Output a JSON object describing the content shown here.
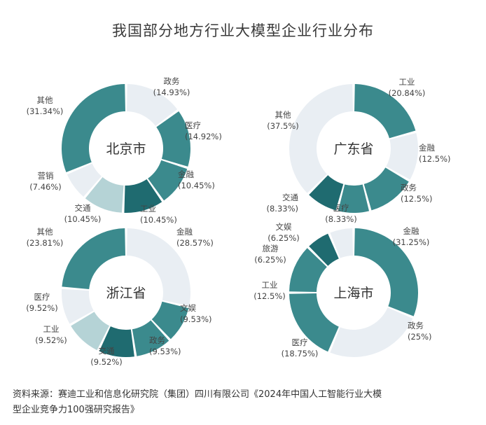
{
  "title": "我国部分地方行业大模型企业行业分布",
  "colors": {
    "dark": "#1f6b70",
    "medium": "#3b8a8d",
    "light": "#b5d3d6",
    "pale": "#e9eef3"
  },
  "chart_data": [
    {
      "type": "pie",
      "center_label": "北京市",
      "slices": [
        {
          "name": "政务",
          "value": 14.93,
          "label": "(14.93%)",
          "color": "pale"
        },
        {
          "name": "医疗",
          "value": 14.92,
          "label": "(14.92%)",
          "color": "medium"
        },
        {
          "name": "金融",
          "value": 10.45,
          "label": "(10.45%)",
          "color": "medium"
        },
        {
          "name": "工业",
          "value": 10.45,
          "label": "(10.45%)",
          "color": "dark"
        },
        {
          "name": "交通",
          "value": 10.45,
          "label": "(10.45%)",
          "color": "light"
        },
        {
          "name": "营销",
          "value": 7.46,
          "label": "(7.46%)",
          "color": "pale"
        },
        {
          "name": "其他",
          "value": 31.34,
          "label": "(31.34%)",
          "color": "medium"
        }
      ]
    },
    {
      "type": "pie",
      "center_label": "广东省",
      "slices": [
        {
          "name": "工业",
          "value": 20.84,
          "label": "(20.84%)",
          "color": "medium"
        },
        {
          "name": "金融",
          "value": 12.5,
          "label": "(12.5%)",
          "color": "pale"
        },
        {
          "name": "政务",
          "value": 12.5,
          "label": "(12.5%)",
          "color": "medium"
        },
        {
          "name": "医疗",
          "value": 8.33,
          "label": "(8.33%)",
          "color": "medium"
        },
        {
          "name": "交通",
          "value": 8.33,
          "label": "(8.33%)",
          "color": "dark"
        },
        {
          "name": "其他",
          "value": 37.5,
          "label": "(37.5%)",
          "color": "pale"
        }
      ]
    },
    {
      "type": "pie",
      "center_label": "浙江省",
      "slices": [
        {
          "name": "金融",
          "value": 28.57,
          "label": "(28.57%)",
          "color": "pale"
        },
        {
          "name": "文娱",
          "value": 9.53,
          "label": "(9.53%)",
          "color": "medium"
        },
        {
          "name": "政务",
          "value": 9.53,
          "label": "(9.53%)",
          "color": "medium"
        },
        {
          "name": "交通",
          "value": 9.52,
          "label": "(9.52%)",
          "color": "dark"
        },
        {
          "name": "工业",
          "value": 9.52,
          "label": "(9.52%)",
          "color": "light"
        },
        {
          "name": "医疗",
          "value": 9.52,
          "label": "(9.52%)",
          "color": "pale"
        },
        {
          "name": "其他",
          "value": 23.81,
          "label": "(23.81%)",
          "color": "medium"
        }
      ]
    },
    {
      "type": "pie",
      "center_label": "上海市",
      "slices": [
        {
          "name": "金融",
          "value": 31.25,
          "label": "(31.25%)",
          "color": "medium"
        },
        {
          "name": "政务",
          "value": 25,
          "label": "(25%)",
          "color": "pale"
        },
        {
          "name": "医疗",
          "value": 18.75,
          "label": "(18.75%)",
          "color": "medium"
        },
        {
          "name": "工业",
          "value": 12.5,
          "label": "(12.5%)",
          "color": "medium"
        },
        {
          "name": "旅游",
          "value": 6.25,
          "label": "(6.25%)",
          "color": "dark"
        },
        {
          "name": "文娱",
          "value": 6.25,
          "label": "(6.25%)",
          "color": "pale"
        }
      ]
    }
  ],
  "source": {
    "line1": "资料来源：赛迪工业和信息化研究院（集团）四川有限公司《2024年中国人工智能行业大模",
    "line2": "型企业竞争力100强研究报告》"
  }
}
